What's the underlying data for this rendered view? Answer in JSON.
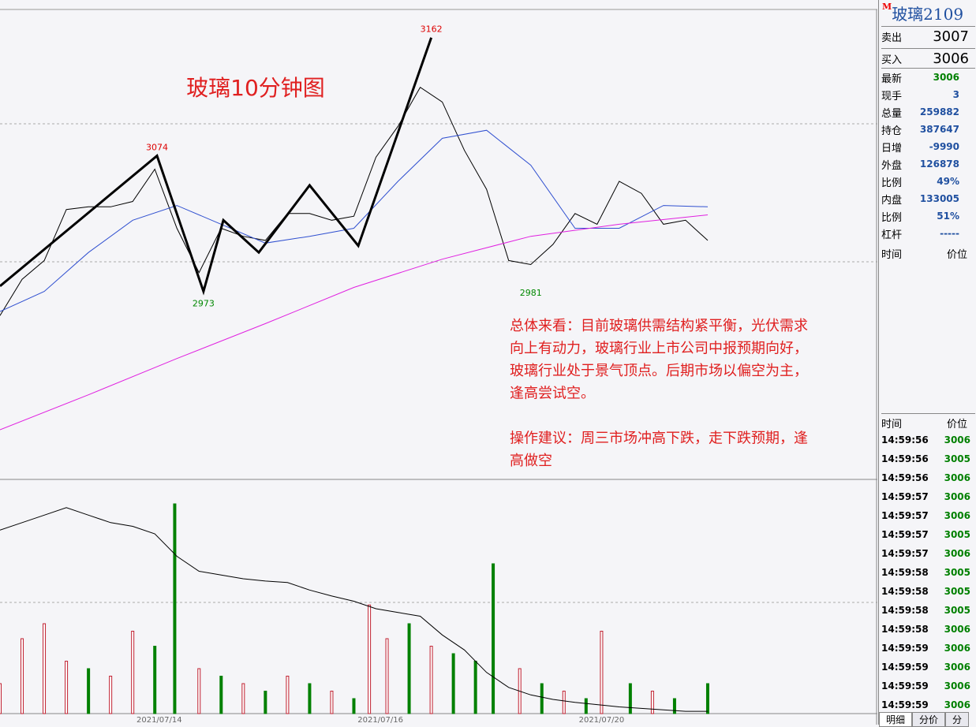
{
  "chart_data": {
    "type": "candlestick-overview",
    "title": "玻璃10分钟图",
    "xlim": [
      0,
      396
    ],
    "ylim": [
      2833,
      3190
    ],
    "x_dates": [
      {
        "x": 72,
        "label": "2021/07/14"
      },
      {
        "x": 172,
        "label": "2021/07/16"
      },
      {
        "x": 272,
        "label": "2021/07/20"
      }
    ],
    "series": [
      {
        "name": "close",
        "color": "#000000",
        "x": [
          0,
          10,
          20,
          30,
          40,
          50,
          60,
          70,
          80,
          90,
          100,
          110,
          120,
          130,
          140,
          150,
          160,
          170,
          180,
          190,
          200,
          210,
          220,
          230,
          240,
          250,
          260,
          270,
          280,
          290,
          300,
          310,
          320
        ],
        "values": [
          2955,
          2982,
          2996,
          3034,
          3036,
          3036,
          3040,
          3064,
          3020,
          2987,
          3020,
          3014,
          3011,
          3031,
          3031,
          3026,
          3029,
          3073,
          3096,
          3125,
          3114,
          3078,
          3049,
          2996,
          2993,
          3008,
          3031,
          3023,
          3055,
          3046,
          3023,
          3026,
          3011
        ]
      },
      {
        "name": "ma-blue",
        "color": "#3050d0",
        "x": [
          0,
          20,
          40,
          60,
          80,
          100,
          120,
          140,
          160,
          180,
          200,
          220,
          240,
          260,
          280,
          300,
          320
        ],
        "values": [
          2958,
          2973,
          3002,
          3026,
          3037,
          3023,
          3009,
          3014,
          3020,
          3055,
          3087,
          3093,
          3067,
          3020,
          3020,
          3037,
          3036
        ]
      },
      {
        "name": "ma-magenta",
        "color": "#e020e0",
        "x": [
          0,
          40,
          80,
          120,
          160,
          200,
          240,
          280,
          320
        ],
        "values": [
          2870,
          2896,
          2923,
          2949,
          2976,
          2997,
          3014,
          3023,
          3030
        ]
      }
    ],
    "zigzag": {
      "x": [
        0,
        71,
        92,
        101,
        117,
        140,
        162,
        195
      ],
      "values": [
        2977,
        3074,
        2973,
        3026,
        3002,
        3052,
        3007,
        3162
      ]
    },
    "price_labels": [
      {
        "x": 71,
        "value": 3074,
        "pos": "above"
      },
      {
        "x": 92,
        "value": 2973,
        "pos": "below"
      },
      {
        "x": 195,
        "value": 3162,
        "pos": "above"
      },
      {
        "x": 240,
        "value": 2981,
        "pos": "below"
      }
    ],
    "commentary": [
      "总体来看：目前玻璃供需结构紧平衡，光伏需求",
      "向上有动力，玻璃行业上市公司中报预期向好，",
      "玻璃行业处于景气顶点。后期市场以偏空为主，",
      "逢高尝试空。",
      "",
      "操作建议：周三市场冲高下跌，走下跌预期，逢",
      "高做空"
    ],
    "volume": {
      "ylim": [
        0,
        300
      ],
      "x": [
        0,
        10,
        20,
        30,
        40,
        50,
        60,
        70,
        79,
        90,
        100,
        110,
        120,
        130,
        140,
        150,
        160,
        167,
        175,
        185,
        195,
        205,
        215,
        223,
        235,
        245,
        255,
        265,
        272,
        285,
        295,
        305,
        320
      ],
      "values": [
        40,
        100,
        120,
        70,
        60,
        50,
        110,
        90,
        280,
        60,
        50,
        40,
        30,
        50,
        40,
        30,
        20,
        145,
        100,
        120,
        90,
        80,
        70,
        200,
        60,
        40,
        30,
        20,
        110,
        40,
        30,
        20,
        40
      ],
      "colors": [
        "#c02030",
        "#c02030",
        "#c02030",
        "#c02030",
        "#008000",
        "#c02030",
        "#c02030",
        "#008000",
        "#008000",
        "#c02030",
        "#008000",
        "#c02030",
        "#008000",
        "#c02030",
        "#008000",
        "#c02030",
        "#008000",
        "#c02030",
        "#c02030",
        "#008000",
        "#c02030",
        "#008000",
        "#008000",
        "#008000",
        "#c02030",
        "#008000",
        "#c02030",
        "#008000",
        "#c02030",
        "#008000",
        "#c02030",
        "#008000",
        "#008000"
      ]
    },
    "open_interest": {
      "x": [
        0,
        10,
        20,
        30,
        40,
        50,
        60,
        70,
        80,
        90,
        100,
        110,
        120,
        130,
        140,
        150,
        160,
        170,
        180,
        190,
        200,
        210,
        220,
        230,
        240,
        250,
        260,
        270,
        280,
        290,
        300,
        310,
        320
      ],
      "values": [
        245,
        255,
        265,
        275,
        265,
        255,
        250,
        240,
        210,
        190,
        185,
        180,
        177,
        175,
        165,
        157,
        150,
        140,
        135,
        130,
        105,
        85,
        55,
        35,
        25,
        19,
        15,
        12,
        9,
        7,
        5,
        3,
        3
      ]
    }
  },
  "panel": {
    "flag": "M",
    "symbol": "玻璃2109",
    "sell": {
      "label": "卖出",
      "value": "3007"
    },
    "buy": {
      "label": "买入",
      "value": "3006"
    },
    "stats": [
      [
        "最新",
        "3006"
      ],
      [
        "现手",
        "3"
      ],
      [
        "总量",
        "259882"
      ],
      [
        "持仓",
        "387647"
      ],
      [
        "日增",
        "-9990"
      ],
      [
        "外盘",
        "126878"
      ],
      [
        "比例",
        "49%"
      ],
      [
        "内盘",
        "133005"
      ],
      [
        "比例",
        "51%"
      ],
      [
        "杠杆",
        "-----"
      ]
    ],
    "head1": [
      "时间",
      "价位"
    ],
    "head2": [
      "时间",
      "价位"
    ],
    "trades": [
      [
        "14:59:56",
        "3006"
      ],
      [
        "14:59:56",
        "3005"
      ],
      [
        "14:59:56",
        "3006"
      ],
      [
        "14:59:57",
        "3006"
      ],
      [
        "14:59:57",
        "3006"
      ],
      [
        "14:59:57",
        "3005"
      ],
      [
        "14:59:57",
        "3006"
      ],
      [
        "14:59:58",
        "3005"
      ],
      [
        "14:59:58",
        "3005"
      ],
      [
        "14:59:58",
        "3005"
      ],
      [
        "14:59:58",
        "3006"
      ],
      [
        "14:59:59",
        "3006"
      ],
      [
        "14:59:59",
        "3006"
      ],
      [
        "14:59:59",
        "3006"
      ],
      [
        "14:59:59",
        "3006"
      ]
    ],
    "tabs": [
      "明细",
      "分价",
      "分"
    ]
  }
}
